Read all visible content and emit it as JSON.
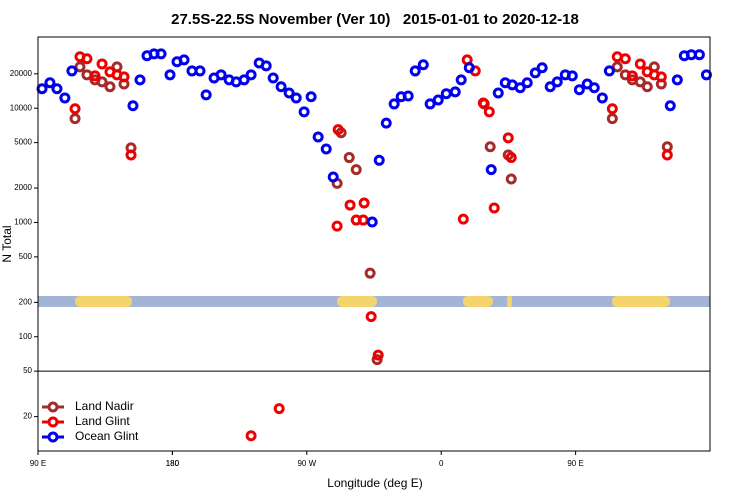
{
  "chart_data": {
    "type": "scatter",
    "title": "27.5S-22.5S November (Ver 10)   2015-01-01 to 2020-12-18",
    "xlabel": "Longitude (deg E)",
    "ylabel": "N Total",
    "xlim": [
      90,
      540
    ],
    "xticks": [
      {
        "value": 90,
        "label": "90 E"
      },
      180,
      {
        "value": 270,
        "label": "90 W"
      },
      {
        "value": 360,
        "label": "0"
      },
      {
        "value": 450,
        "label": "90 E"
      },
      180
    ],
    "ylim": [
      10,
      42000
    ],
    "yticks": [
      20,
      50,
      100,
      200,
      500,
      1000,
      2000,
      5000,
      10000,
      20000
    ],
    "log_y": true,
    "hline": 50,
    "legend": "lower left",
    "series": [
      {
        "name": "Land Nadir",
        "color": "#a52a2a",
        "x": [
          114.8,
          118.1,
          122.8,
          128.2,
          132.9,
          138.2,
          142.9,
          147.6,
          152.3,
          290.3,
          293,
          298.4,
          303.1,
          312.4,
          317.1,
          392.8,
          388.8,
          404.9,
          406.9,
          474.6,
          477.9,
          483.3,
          488,
          493.3,
          498,
          502.7,
          507.4,
          511.4
        ],
        "values": [
          8100,
          23000,
          19600,
          17700,
          17000,
          15400,
          23000,
          16300,
          4500,
          2200,
          6100,
          3700,
          2900,
          360,
          63,
          4600,
          10900,
          3900,
          2400,
          8100,
          23000,
          19600,
          17700,
          17000,
          15400,
          23000,
          16300,
          4600
        ]
      },
      {
        "name": "Land Glint",
        "color": "#ee0000",
        "x": [
          114.8,
          118.1,
          122.8,
          128.2,
          132.9,
          138.2,
          142.9,
          147.6,
          152.3,
          291,
          290.3,
          299,
          303.1,
          307.8,
          308.4,
          313.1,
          317.8,
          251.5,
          232.7,
          374.8,
          377.4,
          382.8,
          388.2,
          392.2,
          395.5,
          404.9,
          406.9,
          474.6,
          477.9,
          483.3,
          488,
          493.3,
          498,
          502.7,
          507.4,
          511.4
        ],
        "values": [
          9900,
          28200,
          27100,
          19200,
          24400,
          20800,
          19600,
          18800,
          3900,
          6500,
          930,
          1420,
          1050,
          1050,
          1480,
          150,
          69,
          23.5,
          13.6,
          1070,
          26500,
          21200,
          11100,
          9300,
          1340,
          5500,
          3700,
          9900,
          28200,
          27100,
          19200,
          24400,
          20800,
          19600,
          18800,
          3900
        ]
      },
      {
        "name": "Ocean Glint",
        "color": "#0000ee",
        "x": [
          92.7,
          98,
          102.7,
          108,
          112.7,
          153.6,
          158.3,
          163,
          167.7,
          172.4,
          178.4,
          183.1,
          187.8,
          193.1,
          198.5,
          202.6,
          207.9,
          212.6,
          218,
          222.7,
          228,
          232.7,
          238.1,
          242.8,
          247.5,
          252.8,
          258.2,
          262.9,
          268.2,
          272.9,
          277.6,
          283,
          287.7,
          313.8,
          318.5,
          323.2,
          328.5,
          333.2,
          337.9,
          342.6,
          348,
          352.6,
          358,
          363.4,
          369.4,
          373.4,
          378.8,
          393.5,
          398.2,
          402.9,
          407.6,
          412.9,
          417.6,
          423,
          427.6,
          433,
          437.7,
          443.1,
          447.8,
          452.5,
          457.8,
          462.5,
          467.9,
          472.6,
          513.4,
          518.1,
          522.8,
          527.5,
          532.9,
          537.6
        ],
        "values": [
          14800,
          16700,
          14800,
          12300,
          21200,
          10500,
          17700,
          28800,
          29900,
          29900,
          19600,
          25500,
          26500,
          21200,
          21200,
          13100,
          18400,
          19600,
          17700,
          17000,
          17700,
          19600,
          24900,
          23500,
          18400,
          15400,
          13600,
          12300,
          9300,
          12600,
          5600,
          4400,
          2500,
          1010,
          3500,
          7400,
          10900,
          12600,
          12800,
          21200,
          24000,
          10900,
          11800,
          13400,
          13900,
          17700,
          22600,
          2900,
          13600,
          16700,
          16000,
          15100,
          16700,
          20400,
          22600,
          15400,
          17000,
          19600,
          19200,
          14500,
          16300,
          15100,
          12300,
          21200,
          10500,
          17700,
          28800,
          29400,
          29400,
          19600
        ]
      }
    ]
  }
}
